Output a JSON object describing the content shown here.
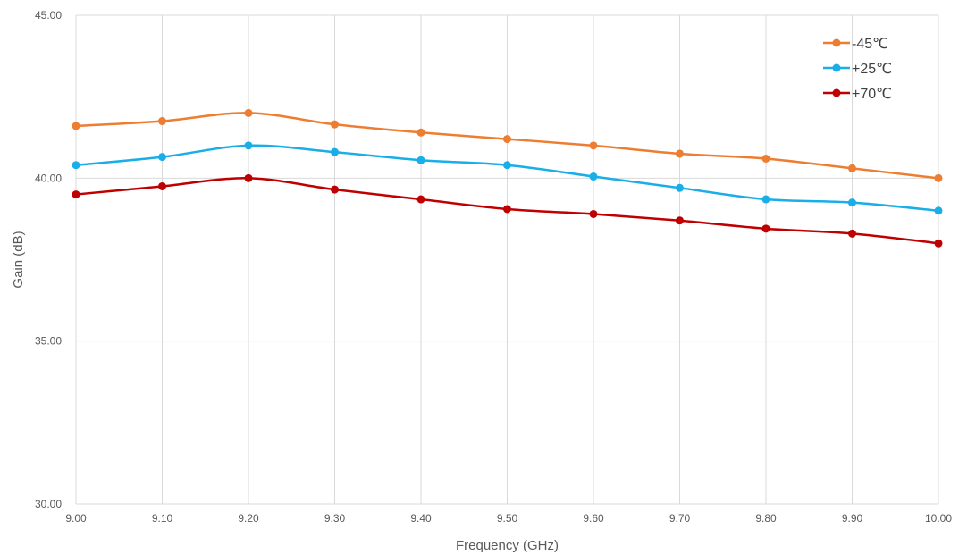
{
  "chart_data": {
    "type": "line",
    "title": "",
    "xlabel": "Frequency (GHz)",
    "ylabel": "Gain (dB)",
    "x": [
      9.0,
      9.1,
      9.2,
      9.3,
      9.4,
      9.5,
      9.6,
      9.7,
      9.8,
      9.9,
      10.0
    ],
    "x_tick_labels": [
      "9.00",
      "9.10",
      "9.20",
      "9.30",
      "9.40",
      "9.50",
      "9.60",
      "9.70",
      "9.80",
      "9.90",
      "10.00"
    ],
    "xlim": [
      9.0,
      10.0
    ],
    "ylim": [
      30,
      45
    ],
    "y_ticks": [
      30,
      35,
      40,
      45
    ],
    "y_tick_labels": [
      "30.00",
      "35.00",
      "40.00",
      "45.00"
    ],
    "grid": true,
    "legend_position": "top-right",
    "series": [
      {
        "name": "-45℃",
        "color": "#ed7d31",
        "values": [
          41.6,
          41.75,
          42.0,
          41.65,
          41.4,
          41.2,
          41.0,
          40.75,
          40.6,
          40.3,
          40.0
        ]
      },
      {
        "name": "+25℃",
        "color": "#1aaee8",
        "values": [
          40.4,
          40.65,
          41.0,
          40.8,
          40.55,
          40.4,
          40.05,
          39.7,
          39.35,
          39.25,
          39.0
        ]
      },
      {
        "name": "+70℃",
        "color": "#c00000",
        "values": [
          39.5,
          39.75,
          40.0,
          39.65,
          39.35,
          39.05,
          38.9,
          38.7,
          38.45,
          38.3,
          38.0
        ]
      }
    ]
  }
}
